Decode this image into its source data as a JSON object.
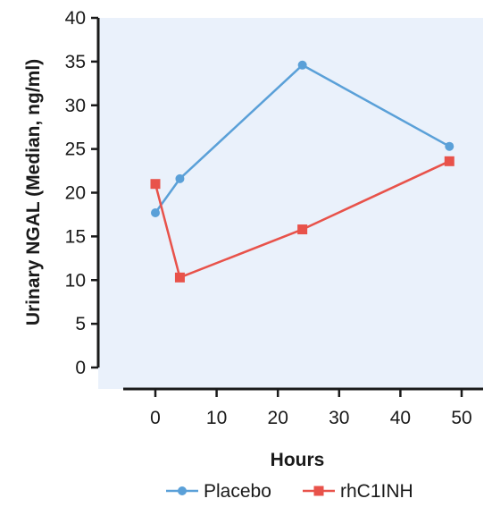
{
  "chart_data": {
    "type": "line",
    "title": "",
    "xlabel": "Hours",
    "ylabel": "Urinary NGAL (Median, ng/ml)",
    "xlim": [
      -5,
      50
    ],
    "ylim": [
      0,
      40
    ],
    "x_ticks": [
      "0",
      "10",
      "20",
      "30",
      "40",
      "50"
    ],
    "y_ticks": [
      "0",
      "5",
      "10",
      "15",
      "20",
      "25",
      "30",
      "35",
      "40"
    ],
    "grid": false,
    "legend_position": "bottom",
    "background_color": "#eaf1fb",
    "series": [
      {
        "name": "Placebo",
        "color": "#5aa0d8",
        "marker": "circle",
        "x": [
          0,
          4,
          24,
          48
        ],
        "y": [
          17.7,
          21.6,
          34.6,
          25.3
        ]
      },
      {
        "name": "rhC1INH",
        "color": "#e8524a",
        "marker": "square",
        "x": [
          0,
          4,
          24,
          48
        ],
        "y": [
          21.0,
          10.3,
          15.8,
          23.6
        ]
      }
    ]
  }
}
